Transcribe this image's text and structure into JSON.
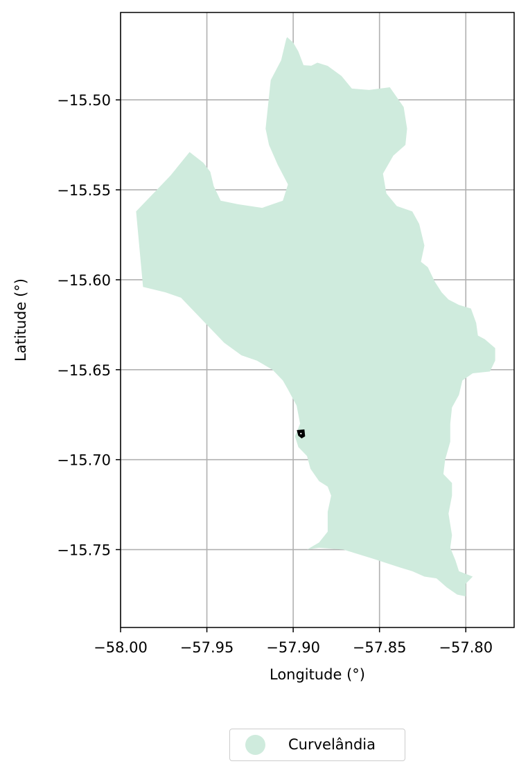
{
  "map": {
    "xlabel": "Longitude (°)",
    "ylabel": "Latitude (°)",
    "xlim": [
      -58.0,
      -57.772
    ],
    "ylim": [
      -15.7933,
      -15.4514
    ],
    "x_ticks": [
      -58.0,
      -57.95,
      -57.9,
      -57.85,
      -57.8
    ],
    "x_tick_labels": [
      "−58.00",
      "−57.95",
      "−57.90",
      "−57.85",
      "−57.80"
    ],
    "y_ticks": [
      -15.5,
      -15.55,
      -15.6,
      -15.65,
      -15.7,
      -15.75
    ],
    "y_tick_labels": [
      "−15.50",
      "−15.55",
      "−15.60",
      "−15.65",
      "−15.70",
      "−15.75"
    ],
    "grid": true,
    "region": {
      "name": "Curvelândia",
      "fill_color": "#cfebdd",
      "boundary_lonlat": [
        [
          -57.9035,
          -15.4651
        ],
        [
          -57.9,
          -15.4681
        ],
        [
          -57.897,
          -15.4731
        ],
        [
          -57.894,
          -15.4807
        ],
        [
          -57.8895,
          -15.481
        ],
        [
          -57.886,
          -15.4793
        ],
        [
          -57.88,
          -15.4811
        ],
        [
          -57.872,
          -15.4867
        ],
        [
          -57.866,
          -15.4937
        ],
        [
          -57.856,
          -15.4945
        ],
        [
          -57.844,
          -15.493
        ],
        [
          -57.836,
          -15.504
        ],
        [
          -57.834,
          -15.516
        ],
        [
          -57.835,
          -15.525
        ],
        [
          -57.842,
          -15.531
        ],
        [
          -57.848,
          -15.541
        ],
        [
          -57.846,
          -15.552
        ],
        [
          -57.84,
          -15.559
        ],
        [
          -57.831,
          -15.562
        ],
        [
          -57.827,
          -15.569
        ],
        [
          -57.824,
          -15.581
        ],
        [
          -57.826,
          -15.59
        ],
        [
          -57.822,
          -15.593
        ],
        [
          -57.818,
          -15.601
        ],
        [
          -57.814,
          -15.607
        ],
        [
          -57.81,
          -15.611
        ],
        [
          -57.804,
          -15.614
        ],
        [
          -57.797,
          -15.616
        ],
        [
          -57.794,
          -15.624
        ],
        [
          -57.793,
          -15.631
        ],
        [
          -57.789,
          -15.633
        ],
        [
          -57.783,
          -15.638
        ],
        [
          -57.783,
          -15.645
        ],
        [
          -57.786,
          -15.651
        ],
        [
          -57.796,
          -15.652
        ],
        [
          -57.802,
          -15.656
        ],
        [
          -57.804,
          -15.664
        ],
        [
          -57.808,
          -15.671
        ],
        [
          -57.809,
          -15.68
        ],
        [
          -57.809,
          -15.69
        ],
        [
          -57.812,
          -15.7
        ],
        [
          -57.813,
          -15.708
        ],
        [
          -57.808,
          -15.713
        ],
        [
          -57.808,
          -15.72
        ],
        [
          -57.81,
          -15.73
        ],
        [
          -57.808,
          -15.742
        ],
        [
          -57.809,
          -15.749
        ],
        [
          -57.806,
          -15.756
        ],
        [
          -57.804,
          -15.762
        ],
        [
          -57.796,
          -15.765
        ],
        [
          -57.8,
          -15.769
        ],
        [
          -57.8,
          -15.776
        ],
        [
          -57.805,
          -15.775
        ],
        [
          -57.811,
          -15.771
        ],
        [
          -57.817,
          -15.766
        ],
        [
          -57.824,
          -15.765
        ],
        [
          -57.831,
          -15.762
        ],
        [
          -57.838,
          -15.76
        ],
        [
          -57.854,
          -15.755
        ],
        [
          -57.871,
          -15.75
        ],
        [
          -57.885,
          -15.749
        ],
        [
          -57.892,
          -15.75
        ],
        [
          -57.885,
          -15.746
        ],
        [
          -57.88,
          -15.74
        ],
        [
          -57.88,
          -15.729
        ],
        [
          -57.878,
          -15.72
        ],
        [
          -57.88,
          -15.715
        ],
        [
          -57.885,
          -15.712
        ],
        [
          -57.89,
          -15.705
        ],
        [
          -57.892,
          -15.698
        ],
        [
          -57.897,
          -15.693
        ],
        [
          -57.899,
          -15.687
        ],
        [
          -57.896,
          -15.68
        ],
        [
          -57.898,
          -15.67
        ],
        [
          -57.903,
          -15.661
        ],
        [
          -57.906,
          -15.656
        ],
        [
          -57.912,
          -15.65
        ],
        [
          -57.921,
          -15.645
        ],
        [
          -57.93,
          -15.642
        ],
        [
          -57.94,
          -15.635
        ],
        [
          -57.949,
          -15.626
        ],
        [
          -57.956,
          -15.619
        ],
        [
          -57.965,
          -15.61
        ],
        [
          -57.974,
          -15.607
        ],
        [
          -57.987,
          -15.604
        ],
        [
          -57.991,
          -15.562
        ],
        [
          -57.979,
          -15.55
        ],
        [
          -57.971,
          -15.542
        ],
        [
          -57.96,
          -15.529
        ],
        [
          -57.952,
          -15.535
        ],
        [
          -57.948,
          -15.54
        ],
        [
          -57.946,
          -15.548
        ],
        [
          -57.942,
          -15.556
        ],
        [
          -57.932,
          -15.558
        ],
        [
          -57.918,
          -15.56
        ],
        [
          -57.906,
          -15.556
        ],
        [
          -57.903,
          -15.547
        ],
        [
          -57.909,
          -15.536
        ],
        [
          -57.914,
          -15.525
        ],
        [
          -57.916,
          -15.516
        ],
        [
          -57.913,
          -15.489
        ],
        [
          -57.907,
          -15.478
        ],
        [
          -57.904,
          -15.466
        ]
      ]
    },
    "marker": {
      "center_lonlat": [
        -57.8955,
        -15.6855
      ],
      "color": "#000000"
    }
  },
  "legend": {
    "entries": [
      {
        "label": "Curvelândia",
        "color": "#cfebdd"
      }
    ]
  }
}
